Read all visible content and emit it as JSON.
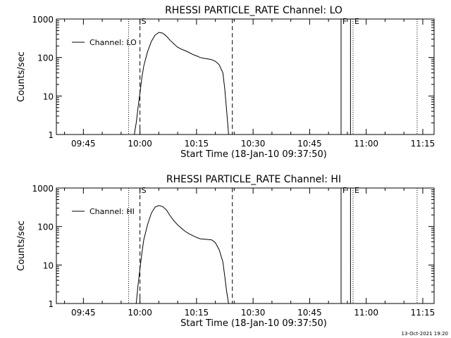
{
  "footer_timestamp": "13-Oct-2021 19:20",
  "chart_data": [
    {
      "type": "line",
      "title": "RHESSI PARTICLE_RATE Channel: LO",
      "xlabel": "Start Time (18-Jan-10 09:37:50)",
      "ylabel": "Counts/sec",
      "xlim": [
        "09:37:50",
        "11:18:00"
      ],
      "ylim": [
        1,
        1000
      ],
      "yscale": "log",
      "grid": false,
      "legend_position": "top-left",
      "xticks": [
        "09:45",
        "10:00",
        "10:15",
        "10:30",
        "10:45",
        "11:00",
        "11:15"
      ],
      "yticks": [
        "1",
        "10",
        "100",
        "1000"
      ],
      "series": [
        {
          "name": "Channel: LO",
          "x": [
            "09:58:30",
            "09:59:00",
            "09:59:30",
            "10:00:00",
            "10:00:30",
            "10:01:00",
            "10:02:00",
            "10:03:00",
            "10:04:00",
            "10:05:00",
            "10:06:00",
            "10:07:00",
            "10:08:00",
            "10:09:00",
            "10:10:00",
            "10:11:00",
            "10:12:00",
            "10:13:00",
            "10:14:00",
            "10:15:00",
            "10:16:00",
            "10:17:00",
            "10:18:00",
            "10:19:00",
            "10:20:00",
            "10:21:00",
            "10:22:00",
            "10:22:30",
            "10:23:00",
            "10:23:30"
          ],
          "values": [
            1,
            2,
            5,
            12,
            30,
            60,
            140,
            260,
            380,
            450,
            430,
            360,
            280,
            225,
            185,
            165,
            150,
            135,
            120,
            110,
            100,
            95,
            92,
            88,
            80,
            65,
            40,
            15,
            4,
            1
          ]
        }
      ],
      "markers": [
        {
          "label": "S",
          "time": "10:00:00",
          "style": "dashed"
        },
        {
          "label": "",
          "time": "10:24:30",
          "style": "dashed"
        },
        {
          "label": "",
          "time": "09:57:00",
          "style": "dotted"
        },
        {
          "label": "",
          "time": "11:13:30",
          "style": "dotted"
        },
        {
          "label": "F",
          "time": "10:53:20",
          "style": "solid"
        },
        {
          "label": "",
          "time": "10:55:50",
          "style": "solid"
        },
        {
          "label": "E",
          "time": "10:56:30",
          "style": "dotted"
        }
      ]
    },
    {
      "type": "line",
      "title": "RHESSI PARTICLE_RATE Channel: HI",
      "xlabel": "Start Time (18-Jan-10 09:37:50)",
      "ylabel": "Counts/sec",
      "xlim": [
        "09:37:50",
        "11:18:00"
      ],
      "ylim": [
        1,
        1000
      ],
      "yscale": "log",
      "grid": false,
      "legend_position": "top-left",
      "xticks": [
        "09:45",
        "10:00",
        "10:15",
        "10:30",
        "10:45",
        "11:00",
        "11:15"
      ],
      "yticks": [
        "1",
        "10",
        "100",
        "1000"
      ],
      "series": [
        {
          "name": "Channel: HI",
          "x": [
            "09:59:00",
            "09:59:30",
            "10:00:00",
            "10:00:30",
            "10:01:00",
            "10:02:00",
            "10:03:00",
            "10:04:00",
            "10:05:00",
            "10:06:00",
            "10:07:00",
            "10:08:00",
            "10:09:00",
            "10:10:00",
            "10:11:00",
            "10:12:00",
            "10:13:00",
            "10:14:00",
            "10:15:00",
            "10:16:00",
            "10:17:00",
            "10:18:00",
            "10:19:00",
            "10:20:00",
            "10:21:00",
            "10:22:00",
            "10:22:30",
            "10:23:00",
            "10:23:30"
          ],
          "values": [
            1,
            3,
            8,
            20,
            45,
            110,
            220,
            320,
            350,
            330,
            270,
            190,
            140,
            110,
            90,
            75,
            65,
            58,
            52,
            48,
            47,
            46,
            45,
            38,
            25,
            12,
            5,
            2,
            1
          ]
        }
      ],
      "markers": [
        {
          "label": "S",
          "time": "10:00:00",
          "style": "dashed"
        },
        {
          "label": "",
          "time": "10:24:30",
          "style": "dashed"
        },
        {
          "label": "",
          "time": "09:57:00",
          "style": "dotted"
        },
        {
          "label": "",
          "time": "11:13:30",
          "style": "dotted"
        },
        {
          "label": "F",
          "time": "10:53:20",
          "style": "solid"
        },
        {
          "label": "",
          "time": "10:55:50",
          "style": "solid"
        },
        {
          "label": "E",
          "time": "10:56:30",
          "style": "dotted"
        }
      ]
    }
  ]
}
